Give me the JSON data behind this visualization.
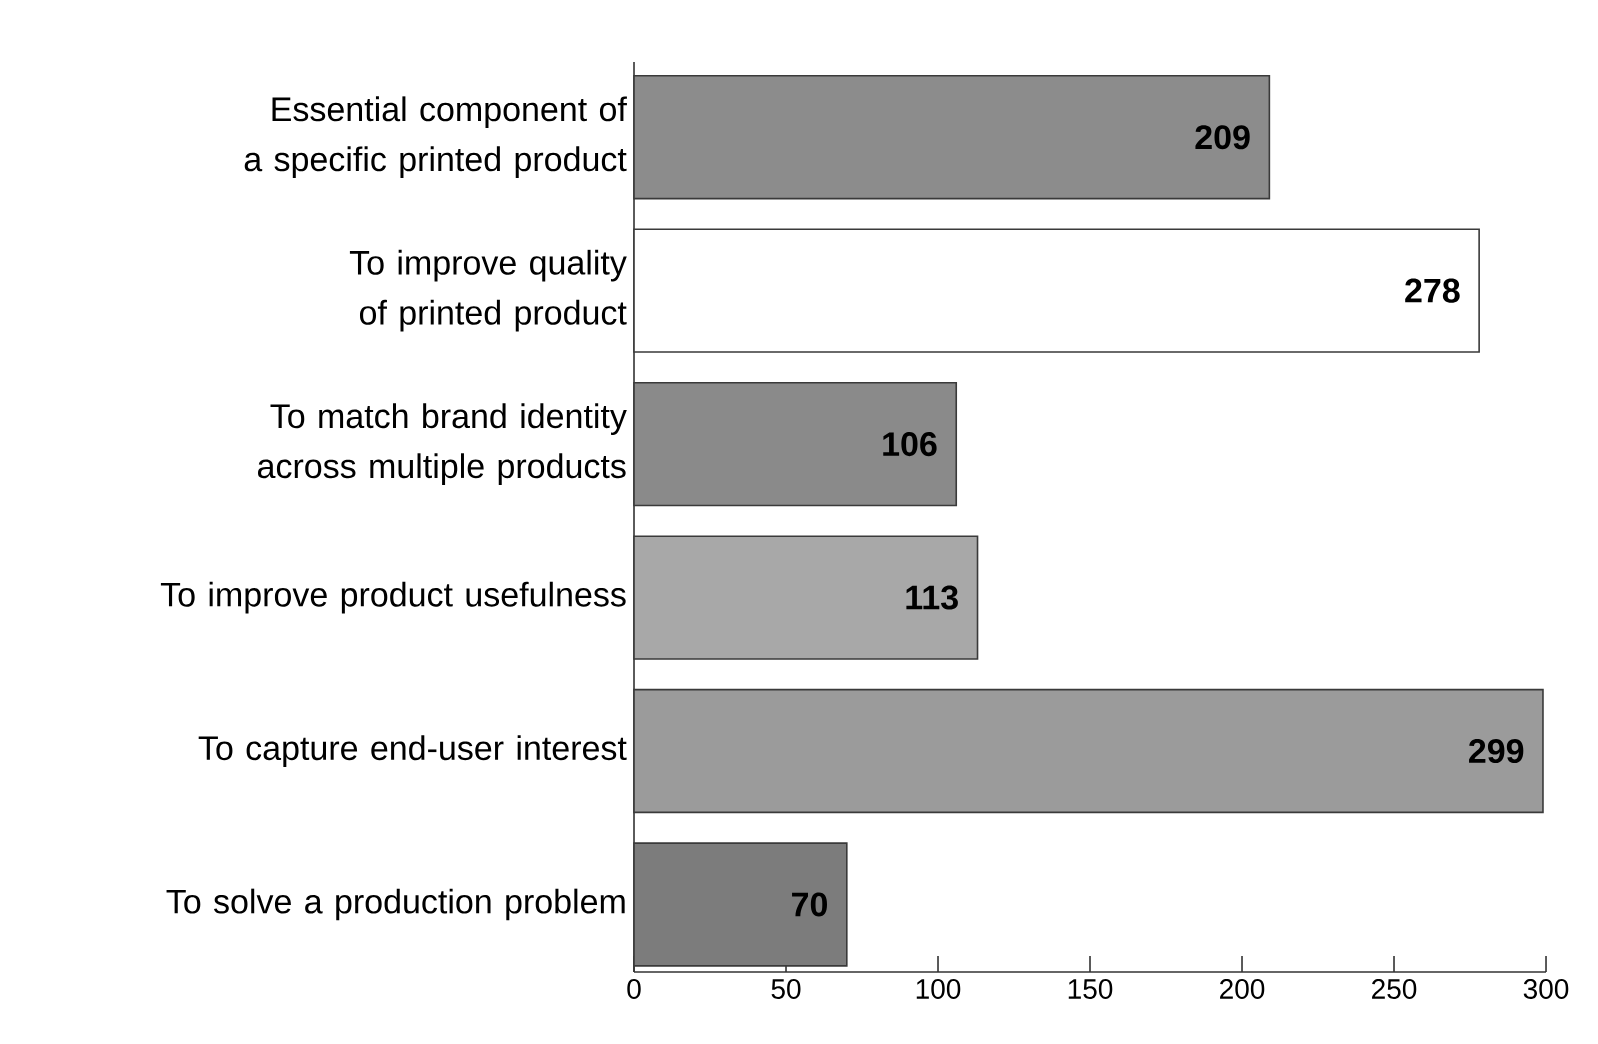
{
  "chart_data": {
    "type": "bar",
    "orientation": "horizontal",
    "categories": [
      "Essential component of a specific printed product",
      "To improve quality of printed product",
      "To match brand identity across multiple products",
      "To improve product usefulness",
      "To capture end-user interest",
      "To solve a production problem"
    ],
    "values": [
      209,
      278,
      106,
      113,
      299,
      70
    ],
    "colors": [
      "#8c8c8c",
      "#ffffff",
      "#8a8a8a",
      "#a8a8a8",
      "#9b9b9b",
      "#7c7c7c"
    ],
    "xlim": [
      0,
      300
    ],
    "xticks": [
      0,
      50,
      100,
      150,
      200,
      250,
      300
    ],
    "data_labels": true
  }
}
